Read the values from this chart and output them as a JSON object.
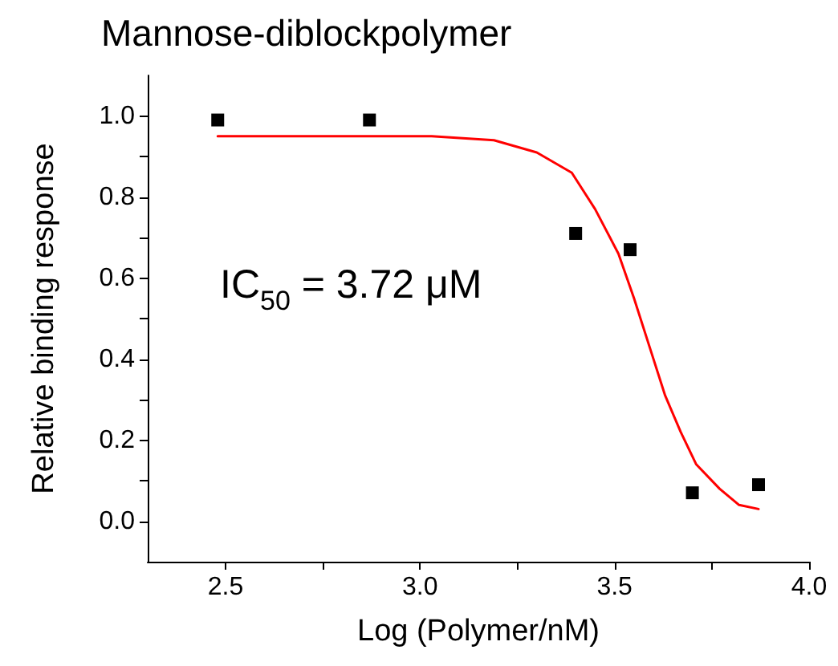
{
  "chart_data": {
    "type": "scatter",
    "title": "Mannose-diblockpolymer",
    "xlabel": "Log (Polymer/nM)",
    "ylabel": "Relative binding response",
    "annotations": [
      "IC$_{50}$ = 3.72 μM"
    ],
    "xlim": [
      2.3,
      4.0
    ],
    "ylim": [
      -0.1,
      1.1
    ],
    "xticks": [
      {
        "value": 2.5,
        "label": "2.5"
      },
      {
        "value": 2.75,
        "label": null
      },
      {
        "value": 3.0,
        "label": "3.0"
      },
      {
        "value": 3.25,
        "label": null
      },
      {
        "value": 3.5,
        "label": "3.5"
      },
      {
        "value": 3.75,
        "label": null
      },
      {
        "value": 4.0,
        "label": "4.0"
      }
    ],
    "yticks": [
      {
        "value": 0,
        "label": "0.0"
      },
      {
        "value": 0.1,
        "label": null
      },
      {
        "value": 0.2,
        "label": "0.2"
      },
      {
        "value": 0.3,
        "label": null
      },
      {
        "value": 0.4,
        "label": "0.4"
      },
      {
        "value": 0.5,
        "label": null
      },
      {
        "value": 0.6,
        "label": "0.6"
      },
      {
        "value": 0.7,
        "label": null
      },
      {
        "value": 0.8,
        "label": "0.8"
      },
      {
        "value": 0.9,
        "label": null
      },
      {
        "value": 1.0,
        "label": "1.0"
      }
    ],
    "grid": false,
    "series": [
      {
        "marker": "square",
        "color": "#000000",
        "x": [
          2.48,
          2.87,
          3.4,
          3.54,
          3.7,
          3.87
        ],
        "values": [
          0.99,
          0.99,
          0.71,
          0.67,
          0.07,
          0.09
        ]
      },
      {
        "type": "line",
        "marker": "none",
        "line_style": "solid",
        "color": "#ff0000",
        "x": [
          2.48,
          3.03,
          3.19,
          3.3,
          3.39,
          3.45,
          3.51,
          3.55,
          3.59,
          3.63,
          3.67,
          3.71,
          3.77,
          3.82,
          3.87
        ],
        "values": [
          0.95,
          0.95,
          0.94,
          0.91,
          0.86,
          0.77,
          0.66,
          0.55,
          0.43,
          0.31,
          0.22,
          0.14,
          0.08,
          0.04,
          0.03
        ]
      }
    ]
  }
}
